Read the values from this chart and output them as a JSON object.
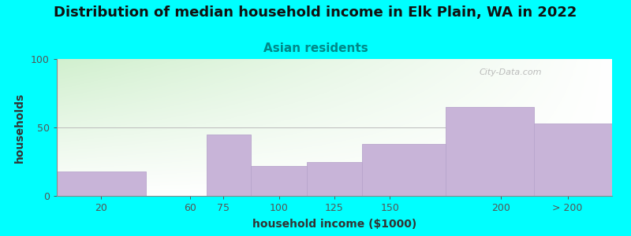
{
  "title": "Distribution of median household income in Elk Plain, WA in 2022",
  "subtitle": "Asian residents",
  "xlabel": "household income ($1000)",
  "ylabel": "households",
  "bar_labels": [
    "20",
    "60",
    "75",
    "100",
    "125",
    "150",
    "200",
    "> 200"
  ],
  "bar_values": [
    18,
    0,
    45,
    22,
    25,
    38,
    65,
    53
  ],
  "bar_color": "#C8B4D8",
  "bar_edge_color": "#B8A5CC",
  "ylim": [
    0,
    100
  ],
  "yticks": [
    0,
    50,
    100
  ],
  "background_color": "#00FFFF",
  "title_fontsize": 13,
  "subtitle_fontsize": 11,
  "subtitle_color": "#008888",
  "axis_label_fontsize": 10,
  "watermark_text": "City-Data.com",
  "tick_positions": [
    20,
    60,
    75,
    100,
    125,
    150,
    200,
    230
  ],
  "bar_boundaries": [
    0,
    40,
    67.5,
    87.5,
    112.5,
    137.5,
    175,
    215,
    250
  ],
  "xlim": [
    0,
    250
  ]
}
